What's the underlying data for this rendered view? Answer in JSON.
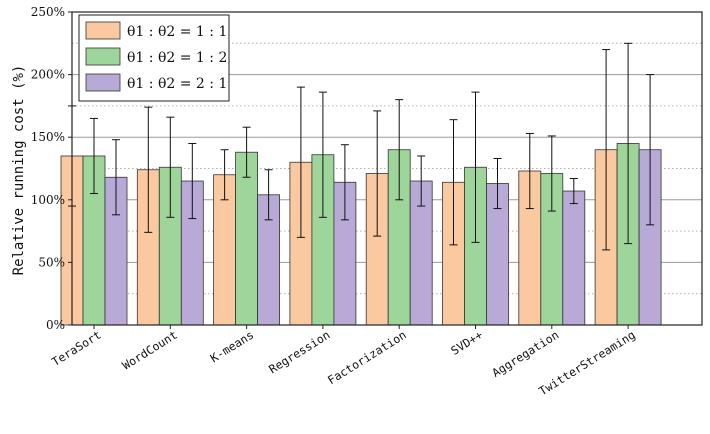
{
  "chart_data": {
    "type": "bar",
    "title": "",
    "xlabel": "",
    "ylabel": "Relative running cost  (%)",
    "ylim": [
      0,
      250
    ],
    "yticks": [
      "0%",
      "50%",
      "100%",
      "150%",
      "200%",
      "250%"
    ],
    "grid": true,
    "legend_position": "top-left",
    "categories": [
      "TeraSort",
      "WordCount",
      "K-means",
      "Regression",
      "Factorization",
      "SVD++",
      "Aggregation",
      "TwitterStreaming"
    ],
    "series": [
      {
        "name": "θ1 : θ2 = 1 : 1",
        "color": "#FBC9A0",
        "values": [
          135,
          124,
          120,
          130,
          121,
          114,
          123,
          140
        ],
        "err_low": [
          95,
          74,
          100,
          70,
          71,
          64,
          93,
          60
        ],
        "err_high": [
          175,
          174,
          140,
          190,
          171,
          164,
          153,
          220
        ]
      },
      {
        "name": "θ1 : θ2 = 1 : 2",
        "color": "#9ED59A",
        "values": [
          135,
          126,
          138,
          136,
          140,
          126,
          121,
          145
        ],
        "err_low": [
          105,
          86,
          118,
          86,
          100,
          66,
          91,
          65
        ],
        "err_high": [
          165,
          166,
          158,
          186,
          180,
          186,
          151,
          225
        ]
      },
      {
        "name": "θ1 : θ2 = 2 : 1",
        "color": "#B9A9D6",
        "values": [
          118,
          115,
          104,
          114,
          115,
          113,
          107,
          140
        ],
        "err_low": [
          88,
          85,
          84,
          84,
          95,
          93,
          97,
          80
        ],
        "err_high": [
          148,
          145,
          124,
          144,
          135,
          133,
          117,
          200
        ]
      }
    ]
  }
}
